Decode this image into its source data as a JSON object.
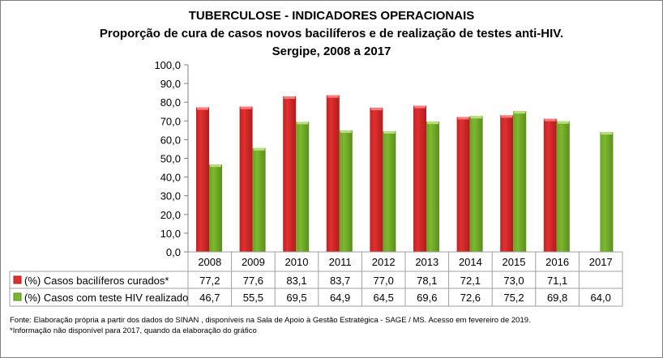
{
  "chart_data": {
    "type": "bar",
    "title": [
      "TUBERCULOSE - INDICADORES OPERACIONAIS",
      "Proporção de cura de casos novos bacilíferos e de realização de testes anti-HIV.",
      "Sergipe, 2008 a 2017"
    ],
    "categories": [
      "2008",
      "2009",
      "2010",
      "2011",
      "2012",
      "2013",
      "2014",
      "2015",
      "2016",
      "2017"
    ],
    "series": [
      {
        "name": "(%) Casos bacilíferos curados*",
        "color": "#e03030",
        "values": [
          77.2,
          77.6,
          83.1,
          83.7,
          77.0,
          78.1,
          72.1,
          73.0,
          71.1,
          null
        ],
        "labels": [
          "77,2",
          "77,6",
          "83,1",
          "83,7",
          "77,0",
          "78,1",
          "72,1",
          "73,0",
          "71,1",
          ""
        ]
      },
      {
        "name": "(%) Casos com teste HIV realizado",
        "color": "#7cb82f",
        "values": [
          46.7,
          55.5,
          69.5,
          64.9,
          64.5,
          69.6,
          72.6,
          75.2,
          69.8,
          64.0
        ],
        "labels": [
          "46,7",
          "55,5",
          "69,5",
          "64,9",
          "64,5",
          "69,6",
          "72,6",
          "75,2",
          "69,8",
          "64,0"
        ]
      }
    ],
    "ylim": [
      0,
      100
    ],
    "yticks": [
      "0,0",
      "10,0",
      "20,0",
      "30,0",
      "40,0",
      "50,0",
      "60,0",
      "70,0",
      "80,0",
      "90,0",
      "100,0"
    ],
    "grid": false,
    "legend": "data-table"
  },
  "notes": [
    "Fonte: Elaboração própria a partir dos dados do SINAN , disponíveis na Sala de  Apoio  à Gestão Estratégica - SAGE / MS. Acesso  em fevereiro de 2019.",
    "*Informação não  disponível  para 2017,  quando da elaboração do gráfico"
  ]
}
